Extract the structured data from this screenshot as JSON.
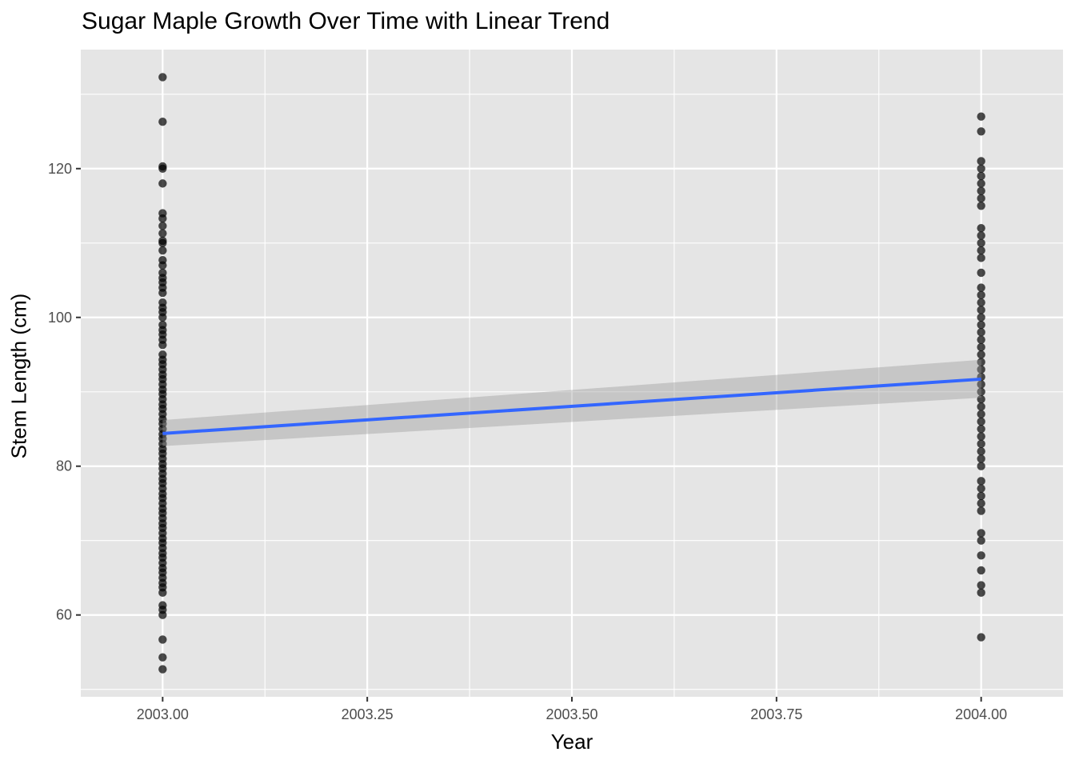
{
  "chart_data": {
    "type": "scatter",
    "title": "Sugar Maple Growth Over Time with Linear Trend",
    "xlabel": "Year",
    "ylabel": "Stem Length (cm)",
    "xlim": [
      2002.9,
      2004.1
    ],
    "ylim": [
      49,
      136
    ],
    "x_ticks": [
      2003.0,
      2003.25,
      2003.5,
      2003.75,
      2004.0
    ],
    "x_tick_labels": [
      "2003.00",
      "2003.25",
      "2003.50",
      "2003.75",
      "2004.00"
    ],
    "y_ticks": [
      60,
      80,
      100,
      120
    ],
    "y_tick_labels": [
      "60",
      "80",
      "100",
      "120"
    ],
    "grid": true,
    "legend": "none",
    "colors": {
      "panel_background": "#e5e5e5",
      "grid": "#ffffff",
      "points": "#000000",
      "trend_line": "#3366ff",
      "confidence_band": "#999999"
    },
    "series": [
      {
        "x": 2003,
        "values": [
          132.3,
          126.3,
          120.3,
          120.0,
          118.0,
          114.0,
          113.3,
          112.3,
          111.3,
          110.3,
          110.0,
          109.0,
          107.7,
          107.0,
          106.0,
          105.3,
          104.7,
          104.0,
          103.3,
          102.0,
          101.3,
          100.7,
          100.0,
          99.0,
          98.3,
          97.7,
          97.0,
          96.3,
          95.0,
          94.3,
          93.7,
          93.0,
          92.3,
          91.7,
          91.0,
          90.3,
          89.7,
          89.0,
          88.3,
          87.7,
          87.0,
          86.3,
          85.7,
          85.0,
          84.3,
          83.7,
          83.0,
          82.3,
          81.7,
          81.0,
          80.3,
          79.7,
          79.0,
          78.3,
          77.7,
          77.0,
          76.3,
          75.7,
          75.0,
          74.3,
          73.7,
          73.0,
          72.3,
          71.7,
          71.0,
          70.3,
          69.7,
          69.0,
          68.3,
          67.7,
          67.0,
          66.3,
          65.7,
          65.0,
          64.3,
          63.7,
          63.0,
          61.3,
          60.7,
          60.0,
          56.7,
          54.3,
          52.7
        ]
      },
      {
        "x": 2004,
        "values": [
          127.0,
          125.0,
          121.0,
          120.0,
          119.0,
          118.0,
          117.0,
          116.0,
          115.0,
          112.0,
          111.0,
          110.0,
          109.0,
          108.0,
          106.0,
          104.0,
          103.0,
          102.0,
          101.0,
          100.0,
          99.0,
          98.0,
          97.0,
          96.0,
          95.0,
          94.0,
          93.0,
          92.0,
          91.0,
          90.0,
          89.0,
          88.0,
          87.0,
          86.0,
          85.0,
          84.0,
          83.0,
          82.0,
          81.0,
          80.0,
          78.0,
          77.0,
          76.0,
          75.0,
          74.0,
          71.0,
          70.0,
          68.0,
          66.0,
          64.0,
          63.0,
          57.0
        ]
      }
    ],
    "trend": {
      "x": [
        2003.0,
        2004.0
      ],
      "y": [
        84.4,
        91.7
      ],
      "ci_lower": [
        82.7,
        89.2
      ],
      "ci_upper": [
        86.2,
        94.3
      ]
    }
  }
}
